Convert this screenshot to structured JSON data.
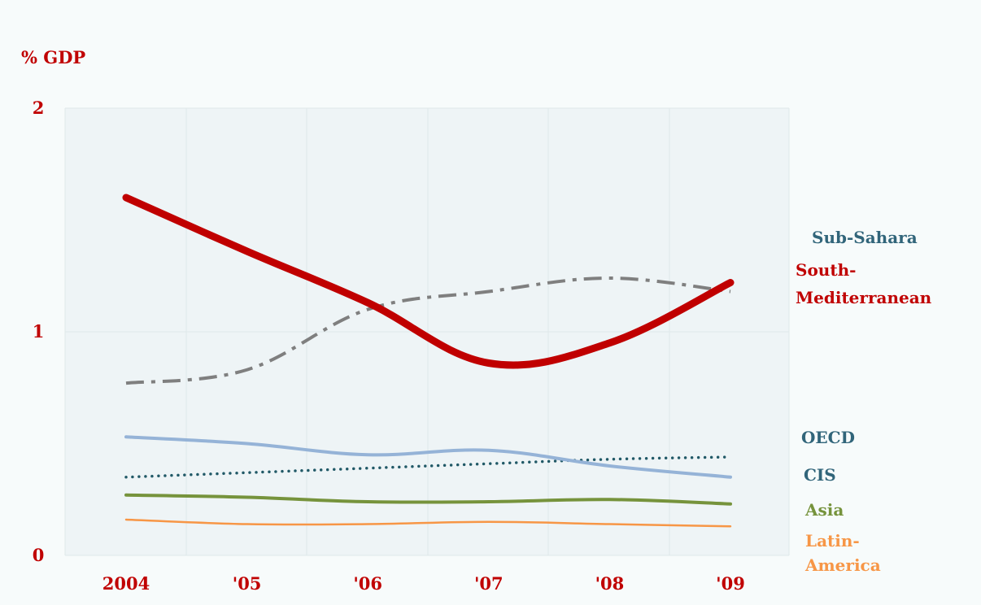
{
  "chart_data": {
    "type": "line",
    "ylabel": "% GDP",
    "ylim": [
      0,
      2
    ],
    "yticks": [
      "0",
      "1",
      "2"
    ],
    "categories": [
      "2004",
      "'05",
      "'06",
      "'07",
      "'08",
      "'09"
    ],
    "grid": true,
    "series": [
      {
        "name": "Sub-Sahara",
        "color": "#7f7f7f",
        "style": "dash-dot",
        "values": [
          0.77,
          0.83,
          1.1,
          1.18,
          1.24,
          1.18
        ]
      },
      {
        "name": "South-Mediterranean",
        "color": "#c00000",
        "style": "solid-thick",
        "values": [
          1.6,
          1.36,
          1.13,
          0.86,
          0.95,
          1.22
        ]
      },
      {
        "name": "OECD",
        "color": "#95b3d7",
        "style": "solid",
        "values": [
          0.53,
          0.5,
          0.45,
          0.47,
          0.4,
          0.35
        ]
      },
      {
        "name": "CIS",
        "color": "#215967",
        "style": "dotted",
        "values": [
          0.35,
          0.37,
          0.39,
          0.41,
          0.43,
          0.44
        ]
      },
      {
        "name": "Asia",
        "color": "#76933c",
        "style": "solid",
        "values": [
          0.27,
          0.26,
          0.24,
          0.24,
          0.25,
          0.23
        ]
      },
      {
        "name": "Latin-America",
        "color": "#f79646",
        "style": "solid-thin",
        "values": [
          0.16,
          0.14,
          0.14,
          0.15,
          0.14,
          0.13
        ]
      }
    ]
  },
  "labels": {
    "sub_sahara": "Sub-Sahara",
    "south_med_1": "South-",
    "south_med_2": "Mediterranean",
    "oecd": "OECD",
    "cis": "CIS",
    "asia": "Asia",
    "latin_1": "Latin-",
    "latin_2": "America"
  }
}
